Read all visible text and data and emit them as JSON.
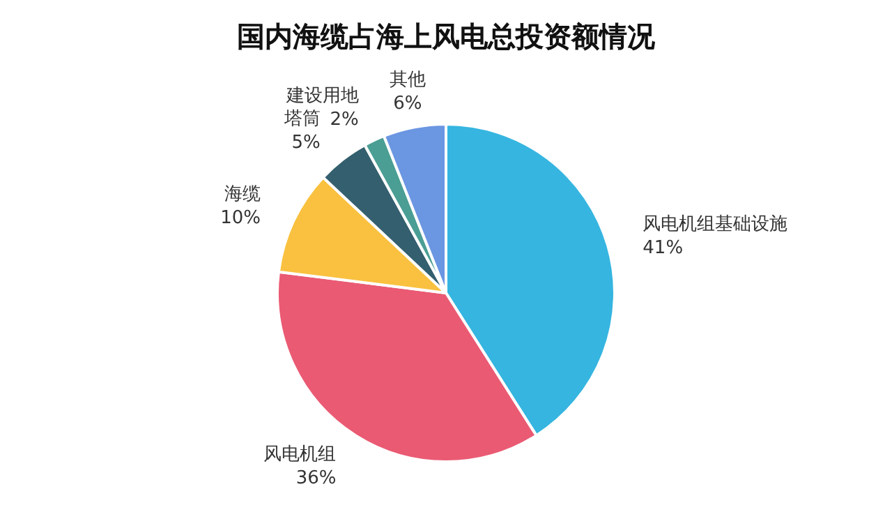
{
  "chart_data": {
    "type": "pie",
    "title": "国内海缆占海上风电总投资额情况",
    "categories": [
      "风电机组基础设施",
      "风电机组",
      "海缆",
      "塔筒",
      "建设用地",
      "其他"
    ],
    "values": [
      41,
      36,
      10,
      5,
      2,
      6
    ],
    "colors": [
      "#36b5e0",
      "#ea5a73",
      "#f9c13f",
      "#345f6e",
      "#4a9e94",
      "#6b96e2"
    ],
    "value_labels": [
      "41%",
      "36%",
      "10%",
      "5%",
      "2%",
      "6%"
    ],
    "legend": false
  }
}
